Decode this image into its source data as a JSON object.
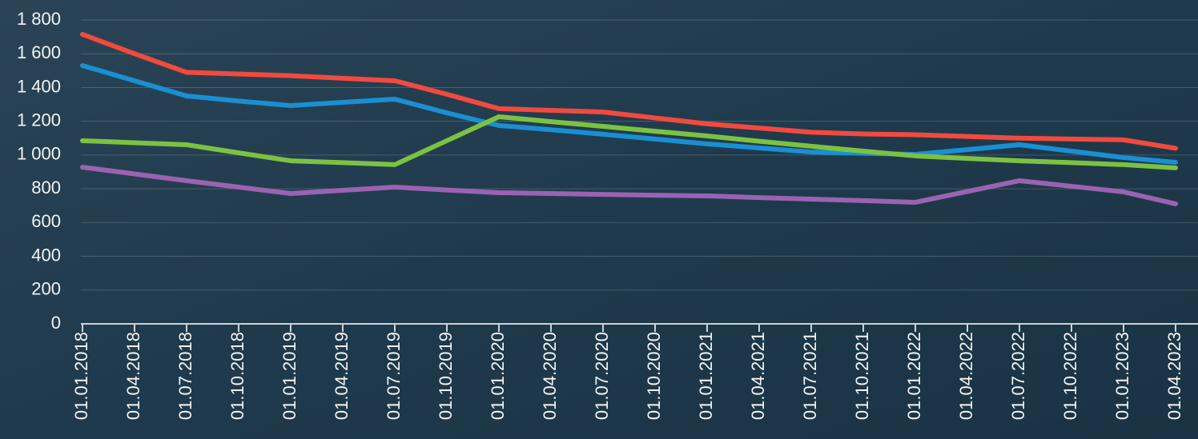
{
  "chart_data": {
    "type": "line",
    "categories": [
      "01.01.2018",
      "01.04.2018",
      "01.07.2018",
      "01.10.2018",
      "01.01.2019",
      "01.04.2019",
      "01.07.2019",
      "01.10.2019",
      "01.01.2020",
      "01.04.2020",
      "01.07.2020",
      "01.10.2020",
      "01.01.2021",
      "01.04.2021",
      "01.07.2021",
      "01.10.2021",
      "01.01.2022",
      "01.04.2022",
      "01.07.2022",
      "01.10.2022",
      "01.01.2023",
      "01.04.2023"
    ],
    "series": [
      {
        "color": "#1a8fd2",
        "values": [
          1530,
          1440,
          1350,
          1320,
          1293,
          1312,
          1331,
          1250,
          1175,
          1150,
          1123,
          1095,
          1066,
          1042,
          1018,
          1010,
          1004,
          1032,
          1061,
          1023,
          985,
          957
        ]
      },
      {
        "color": "#7cc242",
        "values": [
          1085,
          1073,
          1061,
          1013,
          966,
          955,
          943,
          1085,
          1227,
          1198,
          1170,
          1141,
          1113,
          1082,
          1052,
          1023,
          995,
          980,
          966,
          955,
          943,
          924
        ]
      },
      {
        "color": "#9b62b2",
        "values": [
          928,
          888,
          848,
          810,
          772,
          791,
          810,
          793,
          777,
          772,
          767,
          762,
          758,
          748,
          739,
          730,
          720,
          784,
          848,
          815,
          782,
          711
        ]
      },
      {
        "color": "#f24a3e",
        "values": [
          1715,
          1600,
          1490,
          1480,
          1470,
          1455,
          1440,
          1360,
          1275,
          1265,
          1255,
          1220,
          1185,
          1160,
          1135,
          1125,
          1120,
          1110,
          1100,
          1095,
          1090,
          1040
        ]
      }
    ],
    "ylim": [
      0,
      1800
    ],
    "yticks": [
      0,
      200,
      400,
      600,
      800,
      {
        "value": 1000,
        "label": "1 000"
      },
      {
        "value": 1200,
        "label": "1 200"
      },
      {
        "value": 1400,
        "label": "1 400"
      },
      {
        "value": 1600,
        "label": "1 600"
      },
      {
        "value": 1800,
        "label": "1 800"
      }
    ],
    "grid": true
  }
}
